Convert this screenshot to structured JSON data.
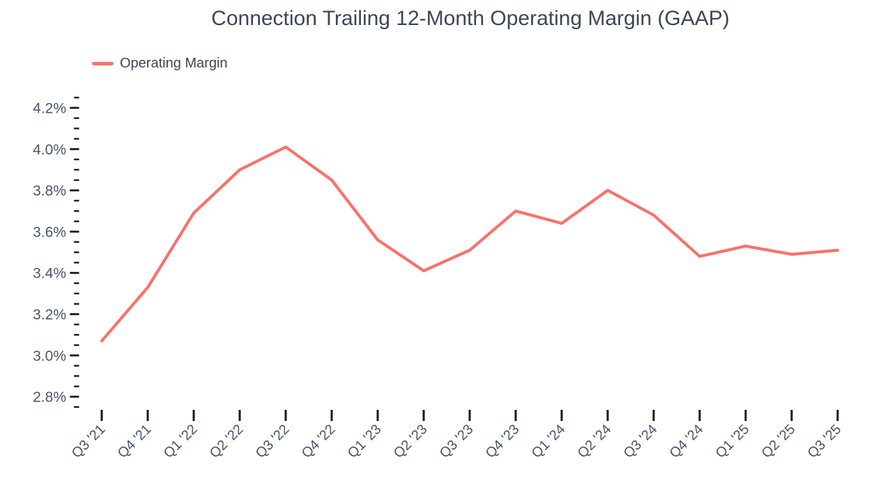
{
  "legend": {
    "label": "Operating Margin",
    "swatch_color": "#FA716B"
  },
  "colors": {
    "line": "#FA716B",
    "title_text": "#3D4656",
    "axis_label_text": "#4A5568",
    "tick": "#16191E",
    "background": "#FFFFFF"
  },
  "chart_data": {
    "type": "line",
    "title": "Connection Trailing 12-Month Operating Margin (GAAP)",
    "xlabel": "",
    "ylabel": "",
    "unit": "%",
    "grid": "off",
    "legend_position": "top-left",
    "categories": [
      "Q3 '21",
      "Q4 '21",
      "Q1 '22",
      "Q2 '22",
      "Q3 '22",
      "Q4 '22",
      "Q1 '23",
      "Q2 '23",
      "Q3 '23",
      "Q4 '23",
      "Q1 '24",
      "Q2 '24",
      "Q3 '24",
      "Q4 '24",
      "Q1 '25",
      "Q2 '25",
      "Q3 '25"
    ],
    "series": [
      {
        "name": "Operating Margin",
        "color": "#FA716B",
        "values": [
          3.07,
          3.33,
          3.69,
          3.9,
          4.01,
          3.85,
          3.56,
          3.41,
          3.51,
          3.7,
          3.64,
          3.8,
          3.68,
          3.48,
          3.53,
          3.49,
          3.51
        ]
      }
    ],
    "ylim": [
      2.75,
      4.25
    ],
    "y_major_ticks": [
      {
        "value": 4.2,
        "label": "4.2%"
      },
      {
        "value": 4.0,
        "label": "4.0%"
      },
      {
        "value": 3.8,
        "label": "3.8%"
      },
      {
        "value": 3.6,
        "label": "3.6%"
      },
      {
        "value": 3.4,
        "label": "3.4%"
      },
      {
        "value": 3.2,
        "label": "3.2%"
      },
      {
        "value": 3.0,
        "label": "3.0%"
      },
      {
        "value": 2.8,
        "label": "2.8%"
      }
    ],
    "y_minor_step": 0.05
  }
}
